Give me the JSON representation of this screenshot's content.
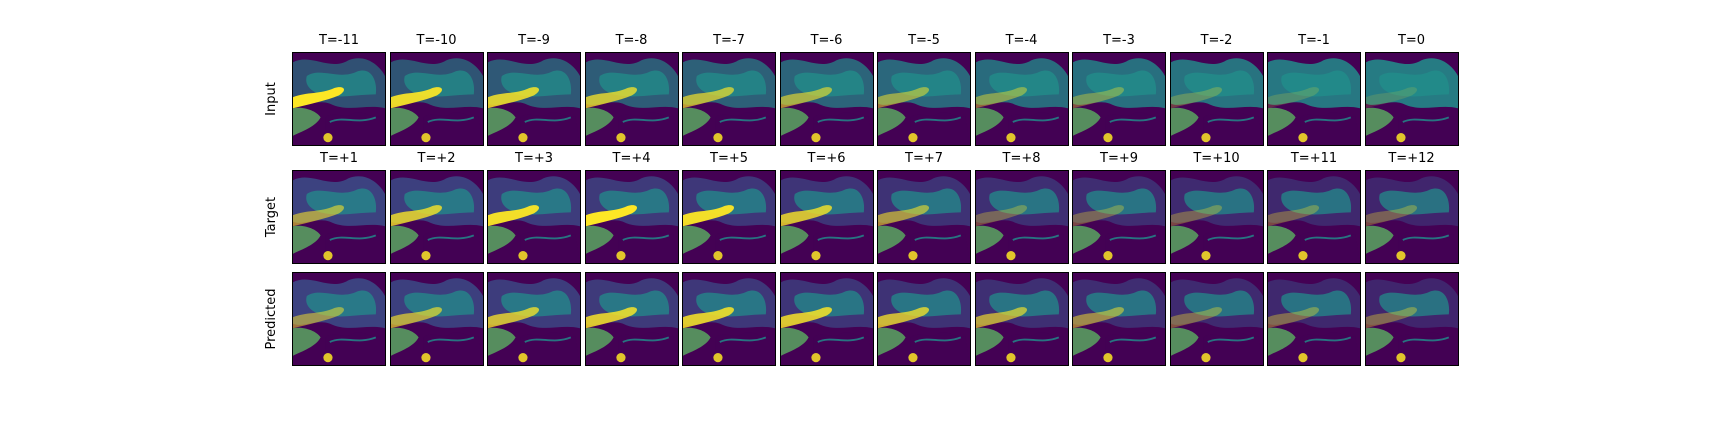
{
  "figure": {
    "rows": [
      {
        "label": "Input",
        "titles": [
          "T=-11",
          "T=-10",
          "T=-9",
          "T=-8",
          "T=-7",
          "T=-6",
          "T=-5",
          "T=-4",
          "T=-3",
          "T=-2",
          "T=-1",
          "T=0"
        ]
      },
      {
        "label": "Target",
        "titles": [
          "T=+1",
          "T=+2",
          "T=+3",
          "T=+4",
          "T=+5",
          "T=+6",
          "T=+7",
          "T=+8",
          "T=+9",
          "T=+10",
          "T=+11",
          "T=+12"
        ]
      },
      {
        "label": "Predicted",
        "titles": []
      }
    ],
    "colormap": [
      "#440154",
      "#3b528b",
      "#21918c",
      "#5ec962",
      "#fde725"
    ]
  }
}
